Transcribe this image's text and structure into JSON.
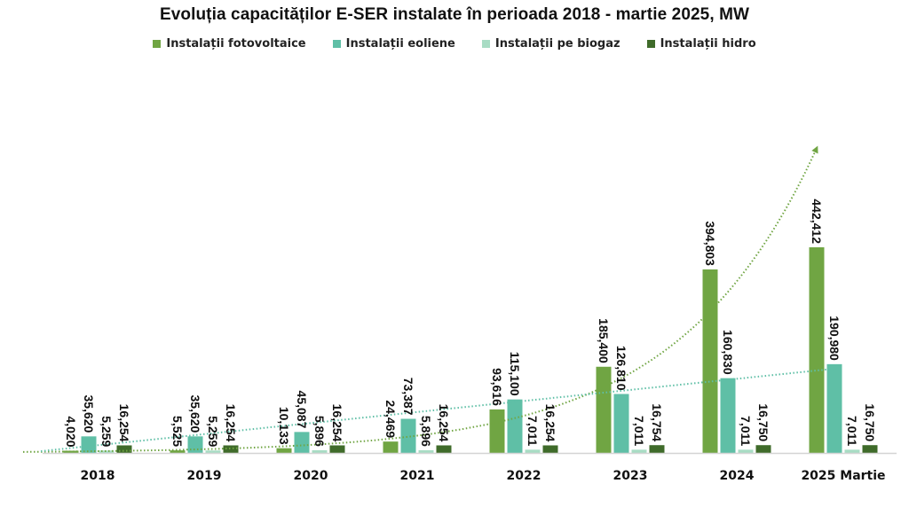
{
  "chart_data": {
    "type": "bar",
    "title": "Evoluția capacităților E-SER instalate în perioada 2018 - martie 2025, MW",
    "xlabel": "",
    "ylabel": "",
    "ylim": [
      0,
      470000
    ],
    "grid": false,
    "legend_position": "top-center",
    "categories": [
      "2018",
      "2019",
      "2020",
      "2021",
      "2022",
      "2023",
      "2024",
      "2025 Martie"
    ],
    "series": [
      {
        "name": "Instalații fotovoltaice",
        "color": "#70a543",
        "values": [
          4020,
          5525,
          10133,
          24469,
          93616,
          185400,
          394803,
          442412
        ],
        "labels": [
          "4,020",
          "5,525",
          "10,133",
          "24,469",
          "93,616",
          "185,400",
          "394,803",
          "442,412"
        ]
      },
      {
        "name": "Instalații eoliene",
        "color": "#5fbfa6",
        "values": [
          35620,
          35620,
          45087,
          73387,
          115100,
          126810,
          160830,
          190980
        ],
        "labels": [
          "35,620",
          "35,620",
          "45,087",
          "73,387",
          "115,100",
          "126,810",
          "160,830",
          "190,980"
        ]
      },
      {
        "name": "Instalații pe biogaz",
        "color": "#a8dcc4",
        "values": [
          5259,
          5259,
          5896,
          5896,
          7011,
          7011,
          7011,
          7011
        ],
        "labels": [
          "5,259",
          "5,259",
          "5,896",
          "5,896",
          "7,011",
          "7,011",
          "7,011",
          "7,011"
        ]
      },
      {
        "name": "Instalații hidro",
        "color": "#3f6b2a",
        "values": [
          16254,
          16254,
          16254,
          16254,
          16254,
          16754,
          16750,
          16750
        ],
        "labels": [
          "16,254",
          "16,254",
          "16,254",
          "16,254",
          "16,254",
          "16,754",
          "16,750",
          "16,750"
        ]
      }
    ],
    "trendlines": [
      {
        "series": "Instalații fotovoltaice",
        "type": "exponential",
        "style": "dotted",
        "color": "#70a543",
        "arrow": true
      },
      {
        "series": "Instalații eoliene",
        "type": "linear",
        "style": "dotted",
        "color": "#5fbfa6",
        "arrow": true
      }
    ]
  }
}
